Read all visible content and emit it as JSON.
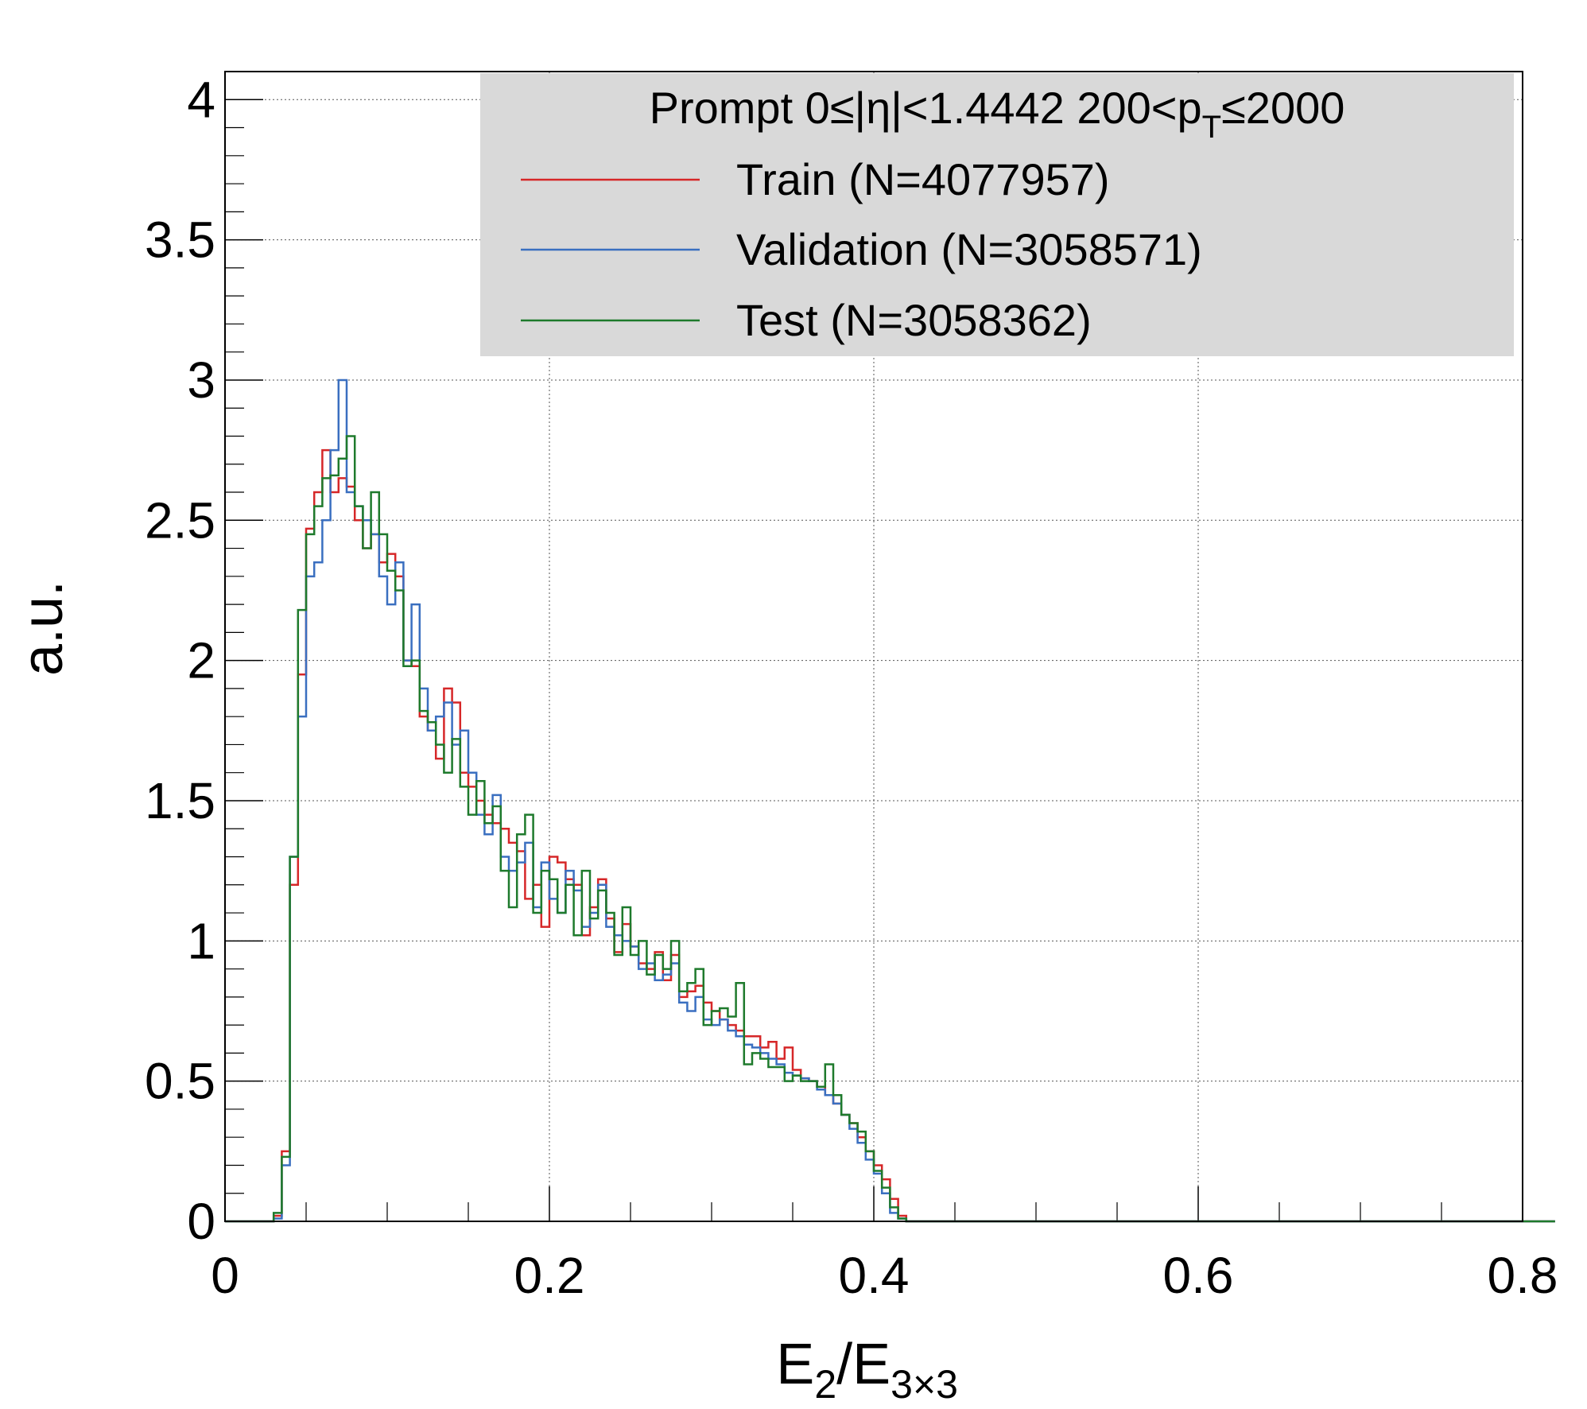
{
  "chart_data": {
    "type": "line",
    "step": true,
    "xlabel": {
      "main": "E",
      "sub1": "2",
      "sep": "/E",
      "sub2": "3×3"
    },
    "ylabel": "a.u.",
    "xlim": [
      0,
      0.8
    ],
    "ylim": [
      0,
      4.1
    ],
    "xticks": [
      "0",
      "0.2",
      "0.4",
      "0.6",
      "0.8"
    ],
    "yticks": [
      "0",
      "0.5",
      "1",
      "1.5",
      "2",
      "2.5",
      "3",
      "3.5",
      "4"
    ],
    "grid": true,
    "legend_position": "top-right",
    "legend": {
      "header_part1": "Prompt  0≤|η|<1.4442  200<p",
      "header_sub": "T",
      "header_part2": "≤2000"
    },
    "bin_width": 0.005,
    "x_start": 0,
    "series": [
      {
        "name": "Train (N=4077957)",
        "color": "#d62728",
        "values": [
          0,
          0,
          0,
          0,
          0,
          0,
          0.02,
          0.25,
          1.2,
          1.95,
          2.47,
          2.6,
          2.75,
          2.6,
          2.65,
          2.62,
          2.5,
          2.4,
          2.45,
          2.35,
          2.38,
          2.3,
          2.0,
          1.98,
          1.8,
          1.75,
          1.65,
          1.9,
          1.85,
          1.6,
          1.55,
          1.5,
          1.45,
          1.42,
          1.4,
          1.35,
          1.32,
          1.15,
          1.2,
          1.05,
          1.3,
          1.28,
          1.22,
          1.2,
          1.02,
          1.12,
          1.22,
          1.08,
          0.96,
          1.06,
          0.98,
          0.92,
          0.9,
          0.96,
          0.86,
          0.95,
          0.8,
          0.82,
          0.84,
          0.78,
          0.75,
          0.72,
          0.7,
          0.68,
          0.66,
          0.66,
          0.62,
          0.64,
          0.58,
          0.62,
          0.54,
          0.51,
          0.5,
          0.48,
          0.45,
          0.42,
          0.38,
          0.35,
          0.3,
          0.25,
          0.2,
          0.15,
          0.08,
          0.02,
          0,
          0,
          0,
          0,
          0,
          0,
          0,
          0,
          0,
          0,
          0,
          0,
          0,
          0,
          0,
          0,
          0,
          0,
          0,
          0,
          0,
          0,
          0,
          0,
          0,
          0,
          0,
          0,
          0,
          0,
          0,
          0,
          0,
          0,
          0,
          0,
          0,
          0,
          0,
          0,
          0,
          0,
          0,
          0,
          0,
          0,
          0,
          0,
          0,
          0,
          0,
          0,
          0,
          0,
          0,
          0,
          0,
          0,
          0,
          0,
          0,
          0,
          0,
          0,
          0,
          0,
          0,
          0,
          0,
          0,
          0,
          0,
          0,
          0,
          0,
          0,
          0,
          0,
          0,
          0
        ]
      },
      {
        "name": "Validation (N=3058571)",
        "color": "#3a6fc0",
        "values": [
          0,
          0,
          0,
          0,
          0,
          0,
          0.01,
          0.2,
          1.3,
          1.8,
          2.3,
          2.35,
          2.5,
          2.75,
          3.0,
          2.6,
          2.55,
          2.5,
          2.45,
          2.3,
          2.2,
          2.35,
          2.0,
          2.2,
          1.9,
          1.75,
          1.8,
          1.85,
          1.7,
          1.75,
          1.6,
          1.45,
          1.38,
          1.52,
          1.3,
          1.25,
          1.28,
          1.35,
          1.12,
          1.28,
          1.15,
          1.1,
          1.25,
          1.18,
          1.05,
          1.1,
          1.2,
          1.05,
          1.02,
          1.0,
          0.98,
          0.9,
          0.92,
          0.86,
          0.88,
          0.92,
          0.78,
          0.75,
          0.8,
          0.72,
          0.7,
          0.72,
          0.68,
          0.66,
          0.63,
          0.62,
          0.6,
          0.58,
          0.56,
          0.53,
          0.52,
          0.51,
          0.5,
          0.47,
          0.45,
          0.42,
          0.38,
          0.33,
          0.28,
          0.22,
          0.17,
          0.1,
          0.03,
          0.01,
          0,
          0,
          0,
          0,
          0,
          0,
          0,
          0,
          0,
          0,
          0,
          0,
          0,
          0,
          0,
          0,
          0,
          0,
          0,
          0,
          0,
          0,
          0,
          0,
          0,
          0,
          0,
          0,
          0,
          0,
          0,
          0,
          0,
          0,
          0,
          0,
          0,
          0,
          0,
          0,
          0,
          0,
          0,
          0,
          0,
          0,
          0,
          0,
          0,
          0,
          0,
          0,
          0,
          0,
          0,
          0,
          0,
          0,
          0,
          0,
          0,
          0,
          0,
          0,
          0,
          0,
          0,
          0,
          0,
          0,
          0,
          0,
          0,
          0,
          0,
          0,
          0,
          0,
          0,
          0
        ]
      },
      {
        "name": "Test (N=3058362)",
        "color": "#1e7a2c",
        "values": [
          0,
          0,
          0,
          0,
          0,
          0,
          0.03,
          0.23,
          1.3,
          2.18,
          2.45,
          2.55,
          2.65,
          2.66,
          2.72,
          2.8,
          2.55,
          2.4,
          2.6,
          2.45,
          2.32,
          2.25,
          1.98,
          2.0,
          1.82,
          1.78,
          1.7,
          1.6,
          1.72,
          1.55,
          1.45,
          1.57,
          1.42,
          1.48,
          1.25,
          1.12,
          1.38,
          1.45,
          1.1,
          1.25,
          1.22,
          1.1,
          1.2,
          1.02,
          1.25,
          1.08,
          1.18,
          1.1,
          0.95,
          1.12,
          0.95,
          1.0,
          0.88,
          0.95,
          0.9,
          1.0,
          0.82,
          0.85,
          0.9,
          0.7,
          0.75,
          0.76,
          0.73,
          0.85,
          0.56,
          0.6,
          0.58,
          0.55,
          0.55,
          0.5,
          0.52,
          0.5,
          0.5,
          0.48,
          0.56,
          0.45,
          0.38,
          0.35,
          0.32,
          0.25,
          0.18,
          0.12,
          0.05,
          0.01,
          0,
          0,
          0,
          0,
          0,
          0,
          0,
          0,
          0,
          0,
          0,
          0,
          0,
          0,
          0,
          0,
          0,
          0,
          0,
          0,
          0,
          0,
          0,
          0,
          0,
          0,
          0,
          0,
          0,
          0,
          0,
          0,
          0,
          0,
          0,
          0,
          0,
          0,
          0,
          0,
          0,
          0,
          0,
          0,
          0,
          0,
          0,
          0,
          0,
          0,
          0,
          0,
          0,
          0,
          0,
          0,
          0,
          0,
          0,
          0,
          0,
          0,
          0,
          0,
          0,
          0,
          0,
          0,
          0,
          0,
          0,
          0,
          0,
          0,
          0,
          0,
          0,
          0,
          0,
          0
        ]
      }
    ]
  }
}
